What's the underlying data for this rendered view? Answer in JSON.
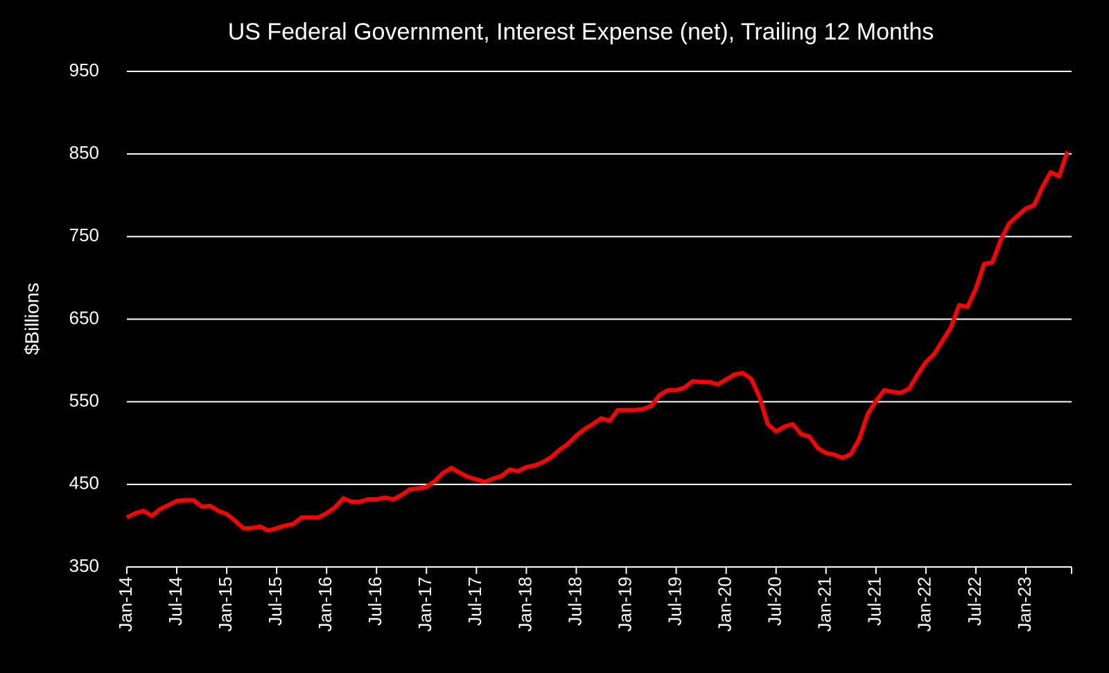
{
  "chart_data": {
    "type": "line",
    "title": "US Federal Government, Interest Expense (net), Trailing 12 Months",
    "ylabel": "$Billions",
    "categories": [
      "Jan-14",
      null,
      null,
      null,
      null,
      null,
      "Jul-14",
      null,
      null,
      null,
      null,
      null,
      "Jan-15",
      null,
      null,
      null,
      null,
      null,
      "Jul-15",
      null,
      null,
      null,
      null,
      null,
      "Jan-16",
      null,
      null,
      null,
      null,
      null,
      "Jul-16",
      null,
      null,
      null,
      null,
      null,
      "Jan-17",
      null,
      null,
      null,
      null,
      null,
      "Jul-17",
      null,
      null,
      null,
      null,
      null,
      "Jan-18",
      null,
      null,
      null,
      null,
      null,
      "Jul-18",
      null,
      null,
      null,
      null,
      null,
      "Jan-19",
      null,
      null,
      null,
      null,
      null,
      "Jul-19",
      null,
      null,
      null,
      null,
      null,
      "Jan-20",
      null,
      null,
      null,
      null,
      null,
      "Jul-20",
      null,
      null,
      null,
      null,
      null,
      "Jan-21",
      null,
      null,
      null,
      null,
      null,
      "Jul-21",
      null,
      null,
      null,
      null,
      null,
      "Jan-22",
      null,
      null,
      null,
      null,
      null,
      "Jul-22",
      null,
      null,
      null,
      null,
      null,
      "Jan-23",
      null,
      null,
      null,
      null,
      null
    ],
    "series": [
      {
        "color": "#ff0000",
        "values": [
          410,
          415,
          418,
          412,
          420,
          425,
          430,
          431,
          431,
          423,
          424,
          418,
          414,
          406,
          397,
          397,
          399,
          394,
          397,
          400,
          402,
          410,
          410,
          410,
          415,
          422,
          433,
          429,
          429,
          432,
          432,
          434,
          432,
          437,
          444,
          445,
          447,
          454,
          464,
          470,
          464,
          459,
          456,
          453,
          457,
          460,
          468,
          466,
          471,
          473,
          477,
          483,
          492,
          499,
          509,
          517,
          523,
          530,
          527,
          540,
          540,
          540,
          541,
          545,
          558,
          564,
          564,
          567,
          575,
          574,
          574,
          571,
          577,
          583,
          585,
          578,
          556,
          523,
          514,
          520,
          523,
          511,
          508,
          494,
          488,
          486,
          482,
          487,
          505,
          535,
          551,
          564,
          562,
          561,
          566,
          583,
          598,
          608,
          624,
          640,
          667,
          665,
          687,
          717,
          719,
          746,
          766,
          775,
          784,
          788,
          810,
          828,
          823,
          853
        ]
      }
    ],
    "ylim": [
      350,
      950
    ],
    "yticks": [
      350,
      450,
      550,
      650,
      750,
      850,
      950
    ],
    "grid": true
  }
}
